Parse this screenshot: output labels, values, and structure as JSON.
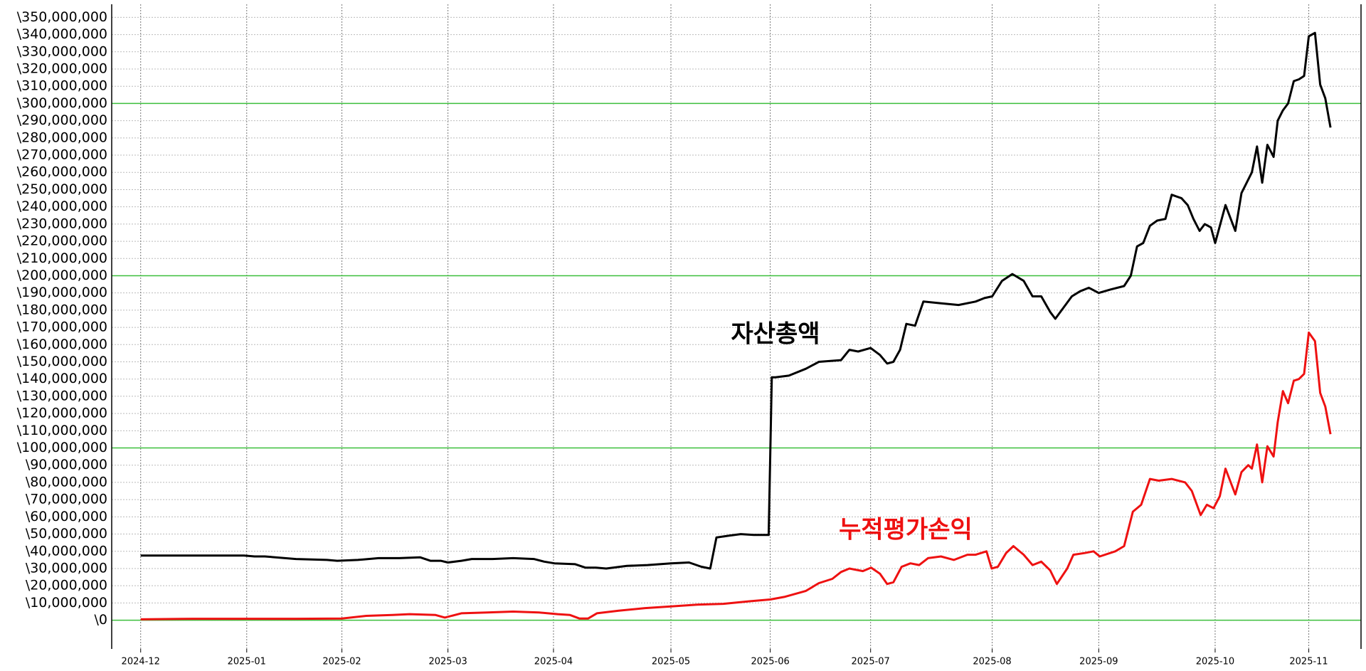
{
  "chart_data": {
    "type": "line",
    "xlim": [
      -5.6,
      235.9
    ],
    "xticks": [
      {
        "value": 0,
        "label": "2024-12"
      },
      {
        "value": 20.5,
        "label": "2025-01"
      },
      {
        "value": 38.9,
        "label": "2025-02"
      },
      {
        "value": 59.4,
        "label": "2025-03"
      },
      {
        "value": 79.8,
        "label": "2025-04"
      },
      {
        "value": 102.5,
        "label": "2025-05"
      },
      {
        "value": 121.7,
        "label": "2025-06"
      },
      {
        "value": 141.1,
        "label": "2025-07"
      },
      {
        "value": 164.6,
        "label": "2025-08"
      },
      {
        "value": 185.2,
        "label": "2025-09"
      },
      {
        "value": 207.7,
        "label": "2025-10"
      },
      {
        "value": 225.8,
        "label": "2025-11"
      }
    ],
    "ylim": [
      -16700000,
      357600000
    ],
    "yticks": [
      {
        "value": 0,
        "label": "\\0"
      },
      {
        "value": 10000000,
        "label": "\\10,000,000"
      },
      {
        "value": 20000000,
        "label": "\\20,000,000"
      },
      {
        "value": 30000000,
        "label": "\\30,000,000"
      },
      {
        "value": 40000000,
        "label": "\\40,000,000"
      },
      {
        "value": 50000000,
        "label": "\\50,000,000"
      },
      {
        "value": 60000000,
        "label": "\\60,000,000"
      },
      {
        "value": 70000000,
        "label": "\\70,000,000"
      },
      {
        "value": 80000000,
        "label": "\\80,000,000"
      },
      {
        "value": 90000000,
        "label": "\\90,000,000"
      },
      {
        "value": 100000000,
        "label": "\\100,000,000"
      },
      {
        "value": 110000000,
        "label": "\\110,000,000"
      },
      {
        "value": 120000000,
        "label": "\\120,000,000"
      },
      {
        "value": 130000000,
        "label": "\\130,000,000"
      },
      {
        "value": 140000000,
        "label": "\\140,000,000"
      },
      {
        "value": 150000000,
        "label": "\\150,000,000"
      },
      {
        "value": 160000000,
        "label": "\\160,000,000"
      },
      {
        "value": 170000000,
        "label": "\\170,000,000"
      },
      {
        "value": 180000000,
        "label": "\\180,000,000"
      },
      {
        "value": 190000000,
        "label": "\\190,000,000"
      },
      {
        "value": 200000000,
        "label": "\\200,000,000"
      },
      {
        "value": 210000000,
        "label": "\\210,000,000"
      },
      {
        "value": 220000000,
        "label": "\\220,000,000"
      },
      {
        "value": 230000000,
        "label": "\\230,000,000"
      },
      {
        "value": 240000000,
        "label": "\\240,000,000"
      },
      {
        "value": 250000000,
        "label": "\\250,000,000"
      },
      {
        "value": 260000000,
        "label": "\\260,000,000"
      },
      {
        "value": 270000000,
        "label": "\\270,000,000"
      },
      {
        "value": 280000000,
        "label": "\\280,000,000"
      },
      {
        "value": 290000000,
        "label": "\\290,000,000"
      },
      {
        "value": 300000000,
        "label": "\\300,000,000"
      },
      {
        "value": 310000000,
        "label": "\\310,000,000"
      },
      {
        "value": 320000000,
        "label": "\\320,000,000"
      },
      {
        "value": 330000000,
        "label": "\\330,000,000"
      },
      {
        "value": 340000000,
        "label": "\\340,000,000"
      },
      {
        "value": 350000000,
        "label": "\\350,000,000"
      }
    ],
    "grid": true,
    "hlines": [
      0,
      100000000,
      200000000,
      300000000
    ],
    "hline_color": "#3cbf3c",
    "series": [
      {
        "name": "자산총액",
        "color": "#000000",
        "x": [
          0,
          5,
          10,
          15,
          20,
          22,
          24,
          30,
          36,
          38,
          42,
          46,
          50,
          54,
          56,
          58,
          59.4,
          62,
          64,
          68,
          72,
          76,
          78,
          80,
          84,
          86,
          88,
          90,
          94,
          98,
          102.5,
          106,
          108.4,
          110.1,
          111.3,
          113.5,
          116,
          118.5,
          121.4,
          122,
          122.7,
          125.3,
          128.6,
          131.1,
          135.4,
          137,
          138.7,
          141.1,
          142.9,
          144.3,
          145.5,
          146.8,
          148,
          149.7,
          151.3,
          154.7,
          158.1,
          161.4,
          163.1,
          164.6,
          166.5,
          168.5,
          170.7,
          172.4,
          174.1,
          175.8,
          176.8,
          180,
          181.6,
          183.3,
          185.2,
          187.5,
          190.1,
          191.4,
          192.6,
          193.8,
          195.1,
          196.5,
          198.1,
          199.3,
          201.2,
          202.4,
          203.5,
          204.7,
          205.7,
          206.9,
          207.7,
          209.7,
          211.6,
          212.8,
          214.8,
          215.8,
          216.8,
          217.8,
          219,
          219.8,
          220.8,
          221.8,
          222.9,
          223.9,
          224.9,
          225.8,
          227,
          228,
          229,
          230
        ],
        "values": [
          37500000,
          37500000,
          37500000,
          37500000,
          37500000,
          37000000,
          37000000,
          35500000,
          35000000,
          34500000,
          35000000,
          36000000,
          36000000,
          36500000,
          34500000,
          34500000,
          33500000,
          34500000,
          35500000,
          35500000,
          36000000,
          35500000,
          34000000,
          33000000,
          32500000,
          30500000,
          30500000,
          30000000,
          31500000,
          32000000,
          33000000,
          33500000,
          31000000,
          30000000,
          48000000,
          49000000,
          50000000,
          49500000,
          49500000,
          141000000,
          141000000,
          142000000,
          146000000,
          150000000,
          151000000,
          157000000,
          156000000,
          158000000,
          154000000,
          149000000,
          150000000,
          157000000,
          172000000,
          171000000,
          185000000,
          184000000,
          183000000,
          185000000,
          187000000,
          188000000,
          197000000,
          201000000,
          197000000,
          188000000,
          188000000,
          179000000,
          175000000,
          188000000,
          191000000,
          193000000,
          190000000,
          192000000,
          194000000,
          200000000,
          217000000,
          219000000,
          229000000,
          232000000,
          233000000,
          247000000,
          245000000,
          241000000,
          233000000,
          226000000,
          230000000,
          228000000,
          219000000,
          241000000,
          226000000,
          248000000,
          260000000,
          275000000,
          254000000,
          276000000,
          269000000,
          290000000,
          296000000,
          300000000,
          313000000,
          314000000,
          316000000,
          339000000,
          341000000,
          311000000,
          303000000,
          286000000
        ]
      },
      {
        "name": "누적평가손익",
        "color": "#ee1111",
        "x": [
          0,
          10,
          20,
          30,
          38.9,
          43.6,
          48.7,
          52,
          57,
          58.8,
          62,
          67,
          72,
          77,
          80.6,
          83,
          84.8,
          86.5,
          88.2,
          92.4,
          97.5,
          102.5,
          107.6,
          112.6,
          117.7,
          121.7,
          124.4,
          128.6,
          131.1,
          133.7,
          135.4,
          137,
          139.6,
          141.2,
          142.9,
          144.3,
          145.5,
          147.1,
          148.8,
          150.5,
          152.2,
          154.7,
          157.2,
          159.8,
          161.4,
          163.5,
          164.5,
          165.7,
          167.3,
          168.7,
          170.7,
          172.4,
          174.1,
          175.8,
          177.1,
          179.1,
          180.3,
          182.5,
          184.2,
          185.4,
          188.4,
          190.1,
          191.8,
          193.4,
          195.1,
          196.8,
          199.3,
          201.9,
          203.2,
          204.9,
          206.1,
          207.4,
          208.6,
          209.7,
          211.6,
          212.8,
          214.1,
          214.8,
          215.8,
          216.8,
          217.8,
          219,
          219.8,
          220.8,
          221.8,
          222.9,
          223.9,
          224.9,
          225.8,
          227,
          228,
          229,
          230
        ],
        "values": [
          500000,
          800000,
          800000,
          800000,
          1000000,
          2500000,
          3000000,
          3500000,
          3000000,
          1500000,
          4000000,
          4500000,
          5000000,
          4500000,
          3500000,
          3000000,
          1000000,
          1000000,
          4000000,
          5500000,
          7000000,
          8000000,
          9000000,
          9500000,
          11000000,
          12000000,
          13500000,
          17000000,
          21500000,
          24000000,
          28000000,
          30000000,
          28500000,
          30500000,
          27000000,
          21000000,
          22000000,
          31000000,
          33000000,
          32000000,
          36000000,
          37000000,
          35000000,
          38000000,
          38000000,
          40000000,
          30000000,
          31000000,
          39000000,
          43000000,
          38000000,
          32000000,
          34000000,
          29000000,
          21000000,
          30000000,
          38000000,
          39000000,
          40000000,
          37000000,
          40000000,
          43000000,
          63000000,
          67000000,
          82000000,
          81000000,
          82000000,
          80000000,
          75000000,
          61000000,
          67000000,
          65000000,
          72000000,
          88000000,
          73000000,
          86000000,
          90000000,
          88000000,
          102000000,
          80000000,
          101000000,
          95000000,
          115000000,
          133000000,
          126000000,
          139000000,
          140000000,
          143000000,
          167000000,
          162000000,
          132000000,
          124000000,
          108000000
        ]
      }
    ]
  }
}
